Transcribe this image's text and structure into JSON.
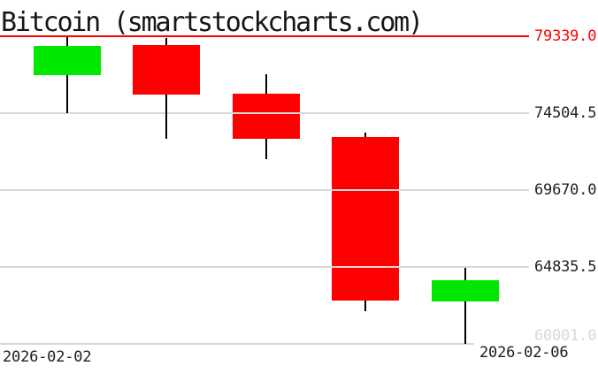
{
  "title": {
    "text": "Bitcoin (smartstockcharts.com)"
  },
  "colors": {
    "background": "#ffffff",
    "up_candle": "#00e800",
    "down_candle": "#fe0000",
    "wick": "#000000",
    "gridline": "#d8d8d8",
    "top_line": "#fe0000",
    "axis_label_dark": "#222222",
    "axis_label_faint": "#d8d8d8",
    "title_text": "#161616"
  },
  "x_axis": {
    "left_label": "2026-02-02",
    "right_label": "2026-02-06"
  },
  "chart_data": {
    "type": "candlestick",
    "title": "Bitcoin (smartstockcharts.com)",
    "ylim": [
      60001.0,
      79339.0
    ],
    "grid": true,
    "legend": false,
    "y_ticks": [
      {
        "label": "79339.0",
        "value": 79339.0,
        "line_color": "#fe0000",
        "label_color": "#fe0000"
      },
      {
        "label": "74504.5",
        "value": 74504.5,
        "line_color": "#d8d8d8",
        "label_color": "#222222"
      },
      {
        "label": "69670.0",
        "value": 69670.0,
        "line_color": "#d8d8d8",
        "label_color": "#222222"
      },
      {
        "label": "64835.5",
        "value": 64835.5,
        "line_color": "#d8d8d8",
        "label_color": "#222222"
      },
      {
        "label": "60001.0",
        "value": 60001.0,
        "line_color": "#d8d8d8",
        "label_color": "#d8d8d8"
      }
    ],
    "x_tick_labels_visible": [
      "2026-02-02",
      "2026-02-06"
    ],
    "candles": [
      {
        "open": 76895,
        "high": 79285,
        "low": 74505,
        "close": 78730,
        "direction": "up"
      },
      {
        "open": 78785,
        "high": 79230,
        "low": 72900,
        "close": 75675,
        "direction": "down"
      },
      {
        "open": 75730,
        "high": 76950,
        "low": 71620,
        "close": 72900,
        "direction": "down"
      },
      {
        "open": 73010,
        "high": 73290,
        "low": 62070,
        "close": 62740,
        "direction": "down"
      },
      {
        "open": 62685,
        "high": 64790,
        "low": 60001,
        "close": 64015,
        "direction": "up"
      }
    ]
  }
}
